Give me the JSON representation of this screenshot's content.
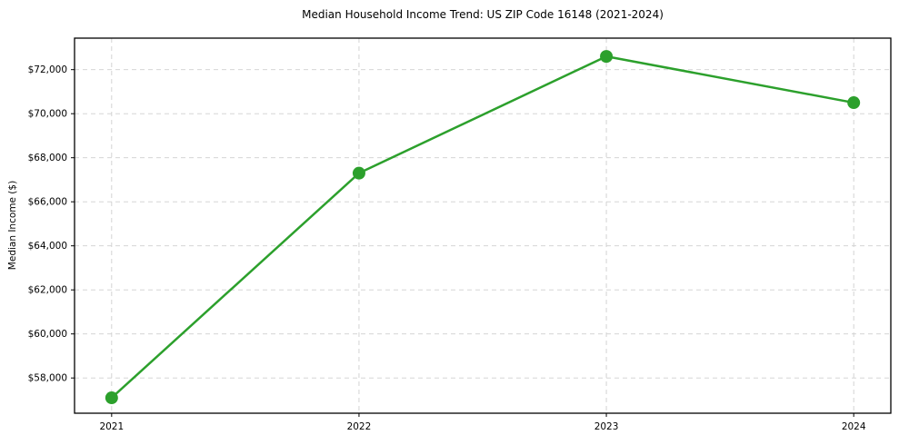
{
  "chart_data": {
    "type": "line",
    "title": "Median Household Income Trend: US ZIP Code 16148 (2021-2024)",
    "xlabel": "",
    "ylabel": "Median Income ($)",
    "x": [
      2021,
      2022,
      2023,
      2024
    ],
    "xtick_labels": [
      "2021",
      "2022",
      "2023",
      "2024"
    ],
    "yticks": [
      58000,
      60000,
      62000,
      64000,
      66000,
      68000,
      70000,
      72000
    ],
    "ytick_labels": [
      "$58,000",
      "$60,000",
      "$62,000",
      "$64,000",
      "$66,000",
      "$68,000",
      "$70,000",
      "$72,000"
    ],
    "series": [
      {
        "name": "Median Household Income",
        "values": [
          57100,
          67300,
          72600,
          70500
        ]
      }
    ],
    "xlim": [
      2020.85,
      2024.15
    ],
    "ylim": [
      56400,
      73430
    ],
    "grid": true,
    "grid_style": "dashed",
    "legend": "none",
    "colors": {
      "line": "#2ca02c",
      "marker": "#2ca02c",
      "grid": "#cfcfcf",
      "spine": "#000000",
      "text": "#000000",
      "background": "#ffffff"
    }
  }
}
